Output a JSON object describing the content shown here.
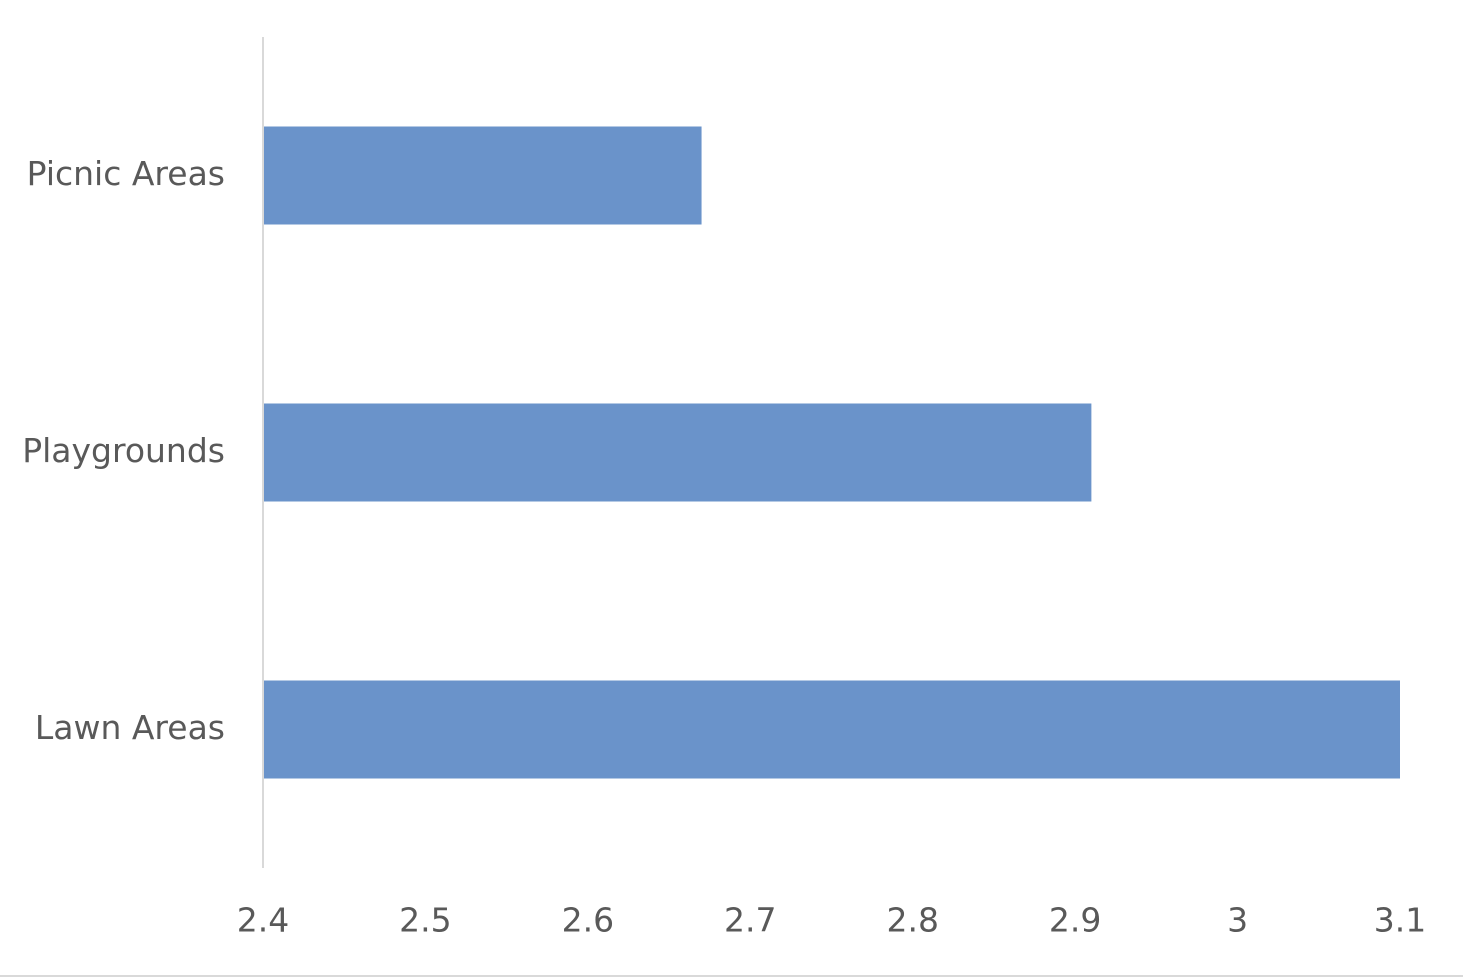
{
  "chart_data": {
    "type": "bar",
    "orientation": "horizontal",
    "categories": [
      "Picnic Areas",
      "Playgrounds",
      "Lawn Areas"
    ],
    "values": [
      2.67,
      2.91,
      3.1
    ],
    "color": "#6a93ca",
    "xlim": [
      2.4,
      3.1
    ],
    "xticks": [
      2.4,
      2.5,
      2.6,
      2.7,
      2.8,
      2.9,
      3,
      3.1
    ],
    "grid": false
  }
}
